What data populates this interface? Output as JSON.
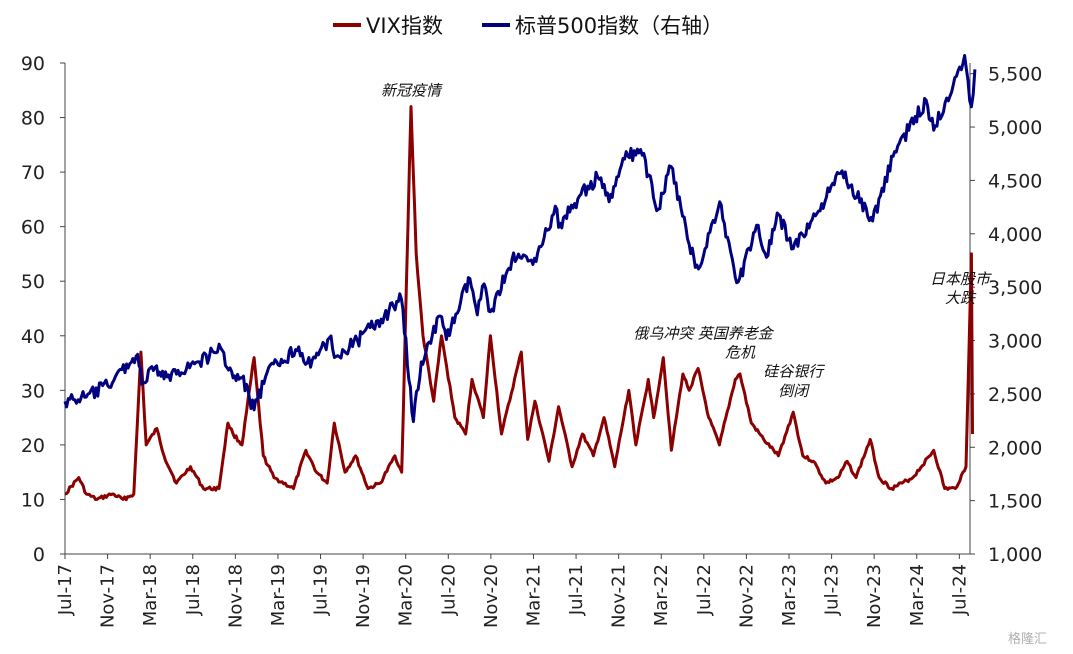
{
  "chart_data": {
    "type": "line",
    "legend": {
      "placement": "top-center"
    },
    "grid": false,
    "x_range": [
      "2017-07",
      "2024-08"
    ],
    "x_ticks": [
      "Jul-17",
      "Nov-17",
      "Mar-18",
      "Jul-18",
      "Nov-18",
      "Mar-19",
      "Jul-19",
      "Nov-19",
      "Mar-20",
      "Jul-20",
      "Nov-20",
      "Mar-21",
      "Jul-21",
      "Nov-21",
      "Mar-22",
      "Jul-22",
      "Nov-22",
      "Mar-23",
      "Jul-23",
      "Nov-23",
      "Mar-24",
      "Jul-24"
    ],
    "y_left": {
      "range": [
        0,
        90
      ],
      "ticks": [
        "0",
        "10",
        "20",
        "30",
        "40",
        "50",
        "60",
        "70",
        "80",
        "90"
      ]
    },
    "y_right": {
      "range": [
        1000,
        5600
      ],
      "ticks": [
        "1,000",
        "1,500",
        "2,000",
        "2,500",
        "3,000",
        "3,500",
        "4,000",
        "4,500",
        "5,000",
        "5,500"
      ]
    },
    "series": [
      {
        "name": "VIX指数",
        "axis": "left",
        "color": "#8b0000",
        "points": [
          [
            "2017-07-01",
            11
          ],
          [
            "2017-08-10",
            14
          ],
          [
            "2017-09-01",
            11
          ],
          [
            "2017-10-01",
            10
          ],
          [
            "2017-11-15",
            11
          ],
          [
            "2017-12-15",
            10
          ],
          [
            "2018-01-15",
            11
          ],
          [
            "2018-02-05",
            37
          ],
          [
            "2018-02-20",
            20
          ],
          [
            "2018-03-20",
            23
          ],
          [
            "2018-04-10",
            18
          ],
          [
            "2018-05-15",
            13
          ],
          [
            "2018-06-25",
            16
          ],
          [
            "2018-08-01",
            12
          ],
          [
            "2018-09-15",
            12
          ],
          [
            "2018-10-10",
            24
          ],
          [
            "2018-10-25",
            22
          ],
          [
            "2018-11-20",
            20
          ],
          [
            "2018-12-24",
            36
          ],
          [
            "2019-01-20",
            18
          ],
          [
            "2019-02-20",
            14
          ],
          [
            "2019-04-15",
            12
          ],
          [
            "2019-05-20",
            19
          ],
          [
            "2019-06-20",
            15
          ],
          [
            "2019-07-20",
            13
          ],
          [
            "2019-08-10",
            24
          ],
          [
            "2019-09-10",
            15
          ],
          [
            "2019-10-10",
            18
          ],
          [
            "2019-11-15",
            12
          ],
          [
            "2019-12-20",
            13
          ],
          [
            "2020-01-31",
            18
          ],
          [
            "2020-02-20",
            15
          ],
          [
            "2020-03-16",
            82
          ],
          [
            "2020-03-31",
            55
          ],
          [
            "2020-04-20",
            40
          ],
          [
            "2020-05-20",
            28
          ],
          [
            "2020-06-12",
            40
          ],
          [
            "2020-07-20",
            25
          ],
          [
            "2020-08-20",
            22
          ],
          [
            "2020-09-08",
            32
          ],
          [
            "2020-10-10",
            25
          ],
          [
            "2020-10-30",
            40
          ],
          [
            "2020-12-01",
            22
          ],
          [
            "2021-01-27",
            37
          ],
          [
            "2021-02-15",
            21
          ],
          [
            "2021-03-05",
            28
          ],
          [
            "2021-04-15",
            17
          ],
          [
            "2021-05-12",
            27
          ],
          [
            "2021-06-20",
            16
          ],
          [
            "2021-07-19",
            22
          ],
          [
            "2021-08-20",
            18
          ],
          [
            "2021-09-20",
            25
          ],
          [
            "2021-10-20",
            16
          ],
          [
            "2021-11-30",
            30
          ],
          [
            "2021-12-20",
            20
          ],
          [
            "2022-01-25",
            32
          ],
          [
            "2022-02-10",
            25
          ],
          [
            "2022-03-07",
            36
          ],
          [
            "2022-03-30",
            19
          ],
          [
            "2022-05-02",
            33
          ],
          [
            "2022-05-20",
            30
          ],
          [
            "2022-06-15",
            34
          ],
          [
            "2022-07-15",
            25
          ],
          [
            "2022-08-15",
            20
          ],
          [
            "2022-09-30",
            32
          ],
          [
            "2022-10-13",
            33
          ],
          [
            "2022-11-15",
            24
          ],
          [
            "2022-12-20",
            21
          ],
          [
            "2023-02-01",
            18
          ],
          [
            "2023-03-13",
            26
          ],
          [
            "2023-04-10",
            18
          ],
          [
            "2023-05-10",
            17
          ],
          [
            "2023-06-15",
            13
          ],
          [
            "2023-07-20",
            14
          ],
          [
            "2023-08-15",
            17
          ],
          [
            "2023-09-10",
            14
          ],
          [
            "2023-10-20",
            21
          ],
          [
            "2023-11-15",
            14
          ],
          [
            "2023-12-20",
            12
          ],
          [
            "2024-01-20",
            13
          ],
          [
            "2024-02-20",
            14
          ],
          [
            "2024-04-19",
            19
          ],
          [
            "2024-05-20",
            12
          ],
          [
            "2024-06-20",
            12
          ],
          [
            "2024-07-20",
            16
          ],
          [
            "2024-08-05",
            55
          ],
          [
            "2024-08-08",
            22
          ]
        ]
      },
      {
        "name": "标普500指数（右轴）",
        "axis": "right",
        "color": "#000080",
        "points": [
          [
            "2017-07-01",
            2430
          ],
          [
            "2017-09-01",
            2470
          ],
          [
            "2017-11-01",
            2580
          ],
          [
            "2018-01-26",
            2870
          ],
          [
            "2018-02-08",
            2590
          ],
          [
            "2018-03-15",
            2750
          ],
          [
            "2018-04-10",
            2640
          ],
          [
            "2018-05-20",
            2720
          ],
          [
            "2018-07-20",
            2800
          ],
          [
            "2018-09-20",
            2930
          ],
          [
            "2018-10-25",
            2650
          ],
          [
            "2018-11-20",
            2650
          ],
          [
            "2018-12-24",
            2350
          ],
          [
            "2019-01-31",
            2700
          ],
          [
            "2019-04-30",
            2940
          ],
          [
            "2019-06-03",
            2750
          ],
          [
            "2019-07-26",
            3025
          ],
          [
            "2019-08-15",
            2850
          ],
          [
            "2019-10-15",
            3000
          ],
          [
            "2019-12-31",
            3230
          ],
          [
            "2020-02-19",
            3390
          ],
          [
            "2020-03-23",
            2240
          ],
          [
            "2020-04-15",
            2800
          ],
          [
            "2020-06-08",
            3230
          ],
          [
            "2020-06-26",
            3010
          ],
          [
            "2020-09-02",
            3580
          ],
          [
            "2020-09-23",
            3240
          ],
          [
            "2020-10-12",
            3530
          ],
          [
            "2020-10-30",
            3270
          ],
          [
            "2020-12-31",
            3760
          ],
          [
            "2021-03-04",
            3770
          ],
          [
            "2021-05-07",
            4230
          ],
          [
            "2021-05-12",
            4060
          ],
          [
            "2021-07-15",
            4370
          ],
          [
            "2021-09-02",
            4530
          ],
          [
            "2021-10-04",
            4300
          ],
          [
            "2021-11-18",
            4700
          ],
          [
            "2022-01-03",
            4790
          ],
          [
            "2022-02-23",
            4230
          ],
          [
            "2022-03-29",
            4630
          ],
          [
            "2022-05-20",
            3900
          ],
          [
            "2022-06-16",
            3670
          ],
          [
            "2022-08-16",
            4300
          ],
          [
            "2022-09-30",
            3590
          ],
          [
            "2022-10-12",
            3580
          ],
          [
            "2022-11-30",
            4080
          ],
          [
            "2022-12-28",
            3780
          ],
          [
            "2023-02-02",
            4180
          ],
          [
            "2023-03-13",
            3860
          ],
          [
            "2023-05-20",
            4190
          ],
          [
            "2023-07-31",
            4590
          ],
          [
            "2023-10-27",
            4120
          ],
          [
            "2023-12-29",
            4770
          ],
          [
            "2024-03-28",
            5250
          ],
          [
            "2024-04-19",
            4970
          ],
          [
            "2024-07-16",
            5670
          ],
          [
            "2024-08-05",
            5190
          ],
          [
            "2024-08-15",
            5540
          ]
        ]
      }
    ],
    "annotations": [
      {
        "text": "新冠疫情",
        "x": "2020-03-16",
        "y": 84,
        "axis": "left"
      },
      {
        "text": "俄乌冲突",
        "x": "2022-03-07",
        "y": 39.5,
        "axis": "left"
      },
      {
        "text": "英国养老金",
        "x": "2022-09-30",
        "y": 39.5,
        "axis": "left"
      },
      {
        "text": "危机",
        "x": "2022-10-13",
        "y": 36,
        "axis": "left"
      },
      {
        "text": "硅谷银行",
        "x": "2023-03-13",
        "y": 32.5,
        "axis": "left"
      },
      {
        "text": "倒闭",
        "x": "2023-03-13",
        "y": 29,
        "axis": "left"
      },
      {
        "text": "日本股市",
        "x": "2024-07-20",
        "y": 49.5,
        "axis": "left"
      },
      {
        "text": "大跌",
        "x": "2024-07-20",
        "y": 46,
        "axis": "left"
      }
    ]
  },
  "watermark": "格隆汇"
}
